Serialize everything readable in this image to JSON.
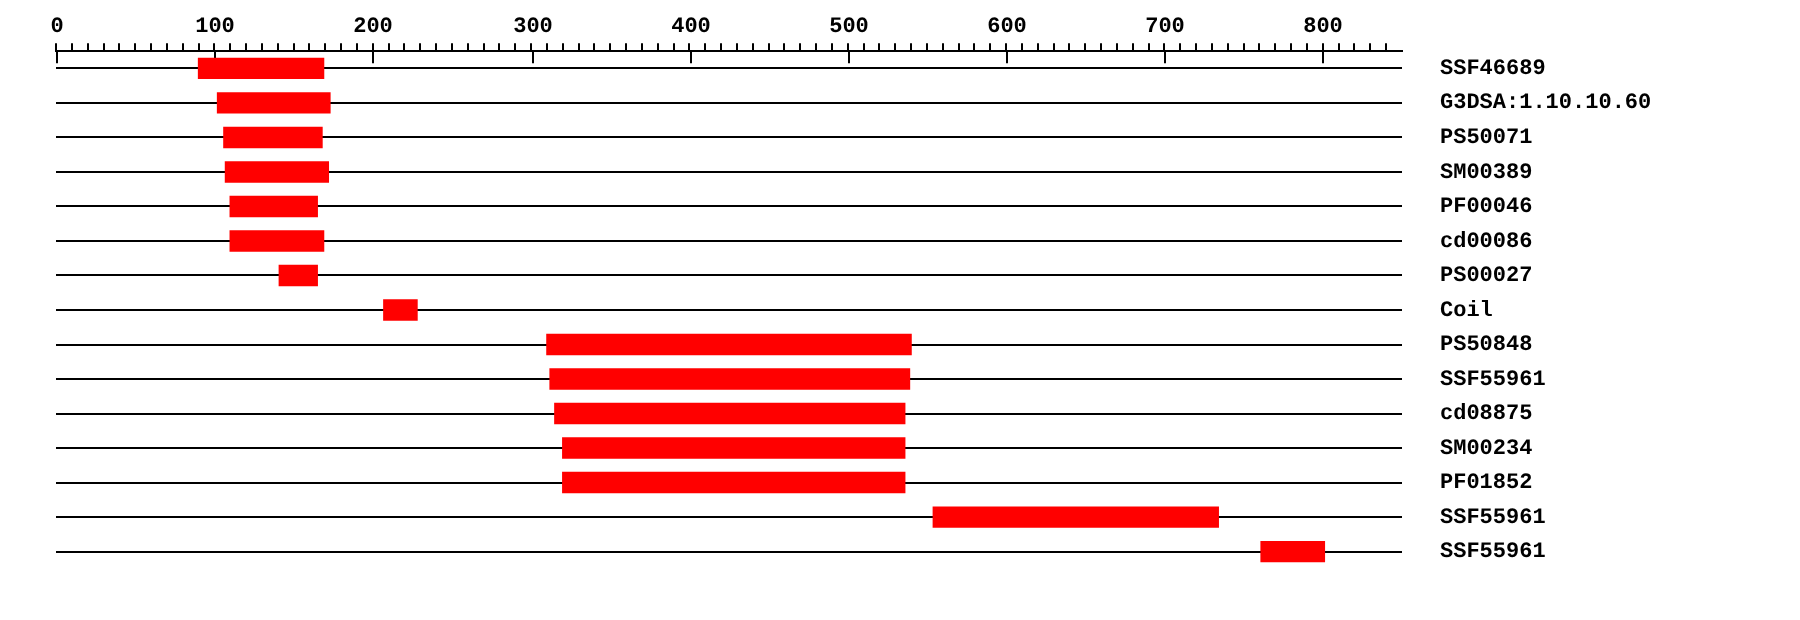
{
  "chart_data": {
    "type": "bar",
    "orientation": "horizontal",
    "categories": [
      "SSF46689",
      "G3DSA:1.10.10.60",
      "PS50071",
      "SM00389",
      "PF00046",
      "cd00086",
      "PS00027",
      "Coil",
      "PS50848",
      "SSF55961",
      "cd08875",
      "SM00234",
      "PF01852",
      "SSF55961",
      "SSF55961"
    ],
    "base": [
      90,
      102,
      106,
      107,
      110,
      110,
      141,
      207,
      310,
      312,
      315,
      320,
      320,
      554,
      761
    ],
    "values": [
      79,
      71,
      62,
      65,
      55,
      59,
      24,
      21,
      230,
      227,
      221,
      216,
      216,
      180,
      40
    ],
    "color": "#ff0000",
    "xlim": [
      0,
      850
    ],
    "xticks": [
      0,
      {
        "value": 10,
        "label": null
      },
      {
        "value": 20,
        "label": null
      },
      {
        "value": 30,
        "label": null
      },
      {
        "value": 40,
        "label": null
      },
      {
        "value": 50,
        "label": null
      },
      {
        "value": 60,
        "label": null
      },
      {
        "value": 70,
        "label": null
      },
      {
        "value": 80,
        "label": null
      },
      {
        "value": 90,
        "label": null
      },
      100,
      {
        "value": 110,
        "label": null
      },
      {
        "value": 120,
        "label": null
      },
      {
        "value": 130,
        "label": null
      },
      {
        "value": 140,
        "label": null
      },
      {
        "value": 150,
        "label": null
      },
      {
        "value": 160,
        "label": null
      },
      {
        "value": 170,
        "label": null
      },
      {
        "value": 180,
        "label": null
      },
      {
        "value": 190,
        "label": null
      },
      200,
      {
        "value": 210,
        "label": null
      },
      {
        "value": 220,
        "label": null
      },
      {
        "value": 230,
        "label": null
      },
      {
        "value": 240,
        "label": null
      },
      {
        "value": 250,
        "label": null
      },
      {
        "value": 260,
        "label": null
      },
      {
        "value": 270,
        "label": null
      },
      {
        "value": 280,
        "label": null
      },
      {
        "value": 290,
        "label": null
      },
      300,
      {
        "value": 310,
        "label": null
      },
      {
        "value": 320,
        "label": null
      },
      {
        "value": 330,
        "label": null
      },
      {
        "value": 340,
        "label": null
      },
      {
        "value": 350,
        "label": null
      },
      {
        "value": 360,
        "label": null
      },
      {
        "value": 370,
        "label": null
      },
      {
        "value": 380,
        "label": null
      },
      {
        "value": 390,
        "label": null
      },
      400,
      {
        "value": 410,
        "label": null
      },
      {
        "value": 420,
        "label": null
      },
      {
        "value": 430,
        "label": null
      },
      {
        "value": 440,
        "label": null
      },
      {
        "value": 450,
        "label": null
      },
      {
        "value": 460,
        "label": null
      },
      {
        "value": 470,
        "label": null
      },
      {
        "value": 480,
        "label": null
      },
      {
        "value": 490,
        "label": null
      },
      500,
      {
        "value": 510,
        "label": null
      },
      {
        "value": 520,
        "label": null
      },
      {
        "value": 530,
        "label": null
      },
      {
        "value": 540,
        "label": null
      },
      {
        "value": 550,
        "label": null
      },
      {
        "value": 560,
        "label": null
      },
      {
        "value": 570,
        "label": null
      },
      {
        "value": 580,
        "label": null
      },
      {
        "value": 590,
        "label": null
      },
      600,
      {
        "value": 610,
        "label": null
      },
      {
        "value": 620,
        "label": null
      },
      {
        "value": 630,
        "label": null
      },
      {
        "value": 640,
        "label": null
      },
      {
        "value": 650,
        "label": null
      },
      {
        "value": 660,
        "label": null
      },
      {
        "value": 670,
        "label": null
      },
      {
        "value": 680,
        "label": null
      },
      {
        "value": 690,
        "label": null
      },
      700,
      {
        "value": 710,
        "label": null
      },
      {
        "value": 720,
        "label": null
      },
      {
        "value": 730,
        "label": null
      },
      {
        "value": 740,
        "label": null
      },
      {
        "value": 750,
        "label": null
      },
      {
        "value": 760,
        "label": null
      },
      {
        "value": 770,
        "label": null
      },
      {
        "value": 780,
        "label": null
      },
      {
        "value": 790,
        "label": null
      },
      800,
      {
        "value": 810,
        "label": null
      },
      {
        "value": 820,
        "label": null
      },
      {
        "value": 830,
        "label": null
      },
      {
        "value": 840,
        "label": null
      }
    ],
    "grid": "y",
    "legend": false
  }
}
